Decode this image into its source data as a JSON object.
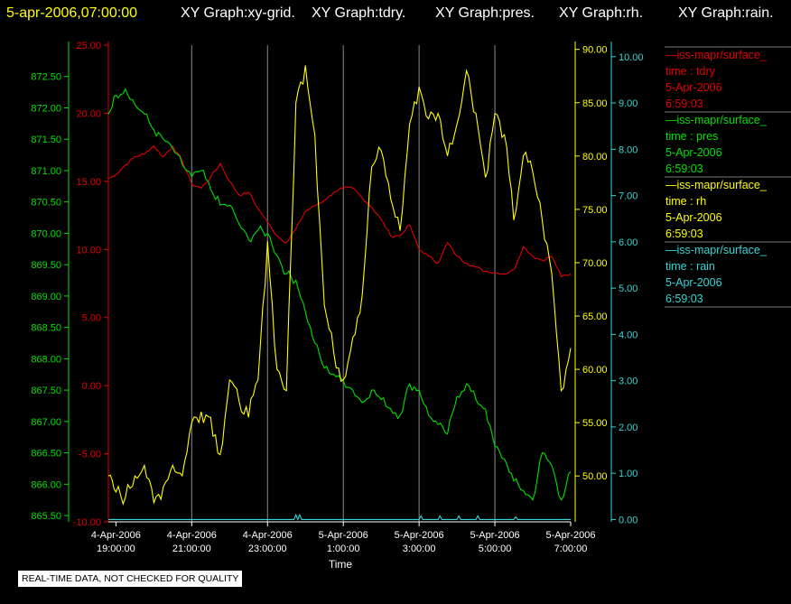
{
  "header": {
    "timestamp": "5-apr-2006,07:00:00",
    "graphs": [
      "XY Graph:xy-grid.",
      "XY Graph:tdry.",
      "XY Graph:pres.",
      "XY Graph:rh.",
      "XY Graph:rain."
    ]
  },
  "colors": {
    "background": "#000000",
    "tdry": "#e00000",
    "pres": "#00e000",
    "rh": "#ffff00",
    "rain": "#33d6d6",
    "header_title": "#ffff00",
    "text": "#ffffff"
  },
  "notice": "REAL-TIME DATA, NOT CHECKED FOR QUALITY",
  "legend": [
    {
      "series": "tdry",
      "name": "—iss-mapr/surface_",
      "line1": "time : tdry",
      "line2": "5-Apr-2006",
      "line3": "6:59:03"
    },
    {
      "series": "pres",
      "name": "—iss-mapr/surface_",
      "line1": "time : pres",
      "line2": "5-Apr-2006",
      "line3": "6:59:03"
    },
    {
      "series": "rh",
      "name": "—iss-mapr/surface_",
      "line1": "time : rh",
      "line2": "5-Apr-2006",
      "line3": "6:59:03"
    },
    {
      "series": "rain",
      "name": "—iss-mapr/surface_",
      "line1": "time : rain",
      "line2": "5-Apr-2006",
      "line3": "6:59:03"
    }
  ],
  "chart_data": {
    "type": "line",
    "xlabel": "Time",
    "x_ticks": [
      [
        "4-Apr-2006",
        "19:00:00"
      ],
      [
        "4-Apr-2006",
        "21:00:00"
      ],
      [
        "4-Apr-2006",
        "23:00:00"
      ],
      [
        "5-Apr-2006",
        "1:00:00"
      ],
      [
        "5-Apr-2006",
        "3:00:00"
      ],
      [
        "5-Apr-2006",
        "5:00:00"
      ],
      [
        "5-Apr-2006",
        "7:00:00"
      ]
    ],
    "x_hours": [
      0,
      2,
      4,
      6,
      8,
      10,
      12
    ],
    "xlim_hours": [
      -0.2,
      12
    ],
    "grid": "vertical",
    "axes": {
      "pres": {
        "ylim": [
          865.4,
          873.0
        ],
        "ticks": [
          "865.50",
          "866.00",
          "866.50",
          "867.00",
          "867.50",
          "868.00",
          "868.50",
          "869.00",
          "869.50",
          "870.00",
          "870.50",
          "871.00",
          "871.50",
          "872.00",
          "872.50"
        ]
      },
      "tdry": {
        "ylim": [
          -10,
          25
        ],
        "ticks": [
          "-10.00",
          "-5.00",
          "0.00",
          "5.00",
          "10.00",
          "15.00",
          "20.00",
          "25.00"
        ]
      },
      "rh": {
        "ylim": [
          45.7,
          90.4
        ],
        "ticks": [
          "50.00",
          "55.00",
          "60.00",
          "65.00",
          "70.00",
          "75.00",
          "80.00",
          "85.00",
          "90.00"
        ]
      },
      "rain": {
        "ylim": [
          -0.05,
          10.25
        ],
        "ticks": [
          "0.00",
          "1.00",
          "2.00",
          "3.00",
          "4.00",
          "5.00",
          "6.00",
          "7.00",
          "8.00",
          "9.00",
          "10.00"
        ]
      }
    },
    "series": [
      {
        "name": "tdry",
        "x": [
          -0.2,
          0,
          0.25,
          0.5,
          0.75,
          1,
          1.25,
          1.5,
          1.75,
          2,
          2.25,
          2.5,
          2.75,
          3,
          3.25,
          3.5,
          3.75,
          4,
          4.25,
          4.5,
          4.75,
          5,
          5.25,
          5.5,
          5.75,
          6,
          6.25,
          6.5,
          6.75,
          7,
          7.25,
          7.5,
          7.75,
          8,
          8.25,
          8.5,
          8.75,
          9,
          9.25,
          9.5,
          9.75,
          10,
          10.25,
          10.5,
          10.75,
          11,
          11.25,
          11.5,
          11.75,
          12
        ],
        "y": [
          15.2,
          15.5,
          16.2,
          16.8,
          17,
          17.6,
          16.8,
          17.6,
          16.5,
          14.8,
          14.5,
          15.3,
          16.3,
          15,
          14,
          14.2,
          13,
          12,
          11,
          10.5,
          11.5,
          12.8,
          13.2,
          13.6,
          14.2,
          14.5,
          14.5,
          13.8,
          13.1,
          12.2,
          11,
          11,
          11.8,
          10,
          9.5,
          9,
          10.5,
          9.5,
          9,
          8.7,
          8.4,
          8.3,
          8.2,
          8.5,
          10.2,
          9.5,
          9.2,
          9.5,
          8,
          8.2
        ]
      },
      {
        "name": "pres",
        "x": [
          -0.2,
          0,
          0.25,
          0.5,
          0.75,
          1,
          1.25,
          1.5,
          1.75,
          2,
          2.25,
          2.5,
          2.75,
          3,
          3.25,
          3.5,
          3.75,
          4,
          4.25,
          4.5,
          4.75,
          5,
          5.25,
          5.5,
          5.75,
          6,
          6.25,
          6.5,
          6.75,
          7,
          7.25,
          7.5,
          7.75,
          8,
          8.25,
          8.5,
          8.75,
          9,
          9.25,
          9.5,
          9.75,
          10,
          10.25,
          10.5,
          10.75,
          11,
          11.25,
          11.5,
          11.75,
          12
        ],
        "y": [
          871.9,
          872.2,
          872.3,
          872.05,
          871.9,
          871.65,
          871.5,
          871.35,
          871.1,
          870.9,
          871,
          870.7,
          870.45,
          870.45,
          870.15,
          869.9,
          870.05,
          870,
          869.65,
          869.35,
          869.25,
          868.75,
          868.25,
          867.85,
          867.75,
          867.65,
          867.5,
          867.3,
          867.5,
          867.35,
          867.2,
          867.1,
          867.6,
          867.5,
          867.1,
          866.95,
          866.8,
          867.4,
          867.6,
          867.35,
          867.2,
          866.6,
          866.4,
          866.05,
          865.9,
          865.75,
          866.5,
          866.3,
          865.75,
          866.2
        ]
      },
      {
        "name": "rh",
        "x": [
          -0.2,
          0,
          0.25,
          0.5,
          0.75,
          1,
          1.25,
          1.5,
          1.75,
          2,
          2.25,
          2.5,
          2.75,
          3,
          3.25,
          3.5,
          3.75,
          4,
          4.25,
          4.5,
          4.75,
          5,
          5.25,
          5.5,
          5.75,
          6,
          6.25,
          6.5,
          6.75,
          7,
          7.25,
          7.5,
          7.75,
          8,
          8.25,
          8.5,
          8.75,
          9,
          9.25,
          9.5,
          9.75,
          10,
          10.25,
          10.5,
          10.75,
          11,
          11.25,
          11.5,
          11.75,
          12
        ],
        "y": [
          50,
          48.5,
          48,
          50,
          51,
          47.5,
          49,
          51,
          50,
          55,
          56,
          55.5,
          52,
          59,
          57,
          55.5,
          59,
          72,
          60,
          58,
          85,
          88.5,
          82,
          66,
          61.5,
          59,
          63,
          67,
          79,
          80.5,
          76,
          73,
          83,
          86.5,
          83.5,
          84,
          80,
          83,
          88,
          84,
          78,
          84,
          82,
          74,
          80,
          78.5,
          74,
          69,
          58,
          62
        ]
      },
      {
        "name": "rain",
        "x": [
          -0.2,
          4.7,
          4.75,
          4.8,
          4.85,
          4.9,
          4.95,
          8,
          8.05,
          8.1,
          8.5,
          8.55,
          8.6,
          9,
          9.05,
          9.1,
          9.5,
          9.55,
          9.6,
          10.5,
          10.55,
          10.6,
          12
        ],
        "y": [
          0,
          0,
          0.1,
          0,
          0.1,
          0,
          0,
          0,
          0.08,
          0,
          0,
          0.08,
          0,
          0,
          0.08,
          0,
          0,
          0.08,
          0,
          0,
          0.06,
          0,
          0
        ]
      }
    ]
  }
}
